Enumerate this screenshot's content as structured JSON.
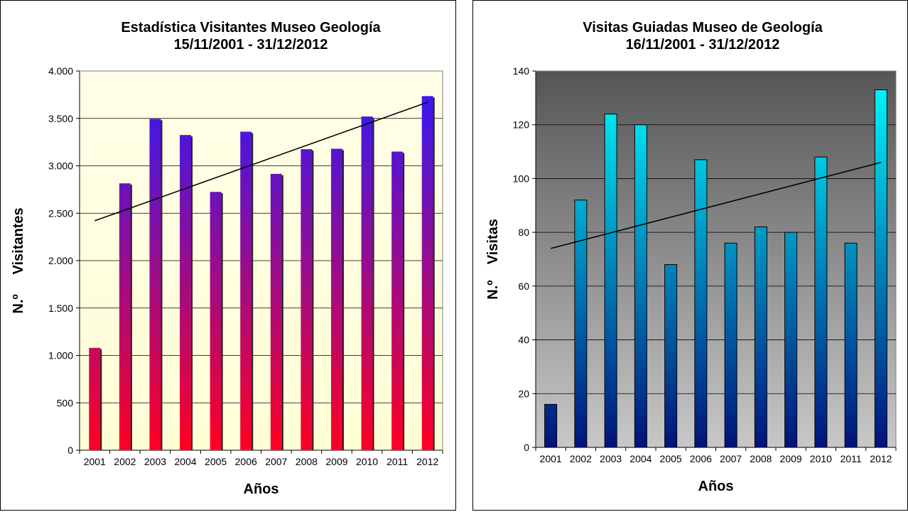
{
  "chart_data": [
    {
      "type": "bar",
      "title": "Estadística Visitantes Museo Geología",
      "subtitle": "15/11/2001  -  31/12/2012",
      "xlabel": "Años",
      "ylabel": "N.º     Visitantes",
      "categories": [
        "2001",
        "2002",
        "2003",
        "2004",
        "2005",
        "2006",
        "2007",
        "2008",
        "2009",
        "2010",
        "2011",
        "2012"
      ],
      "values": [
        1080,
        2815,
        3495,
        3325,
        2725,
        3360,
        2915,
        3175,
        3180,
        3520,
        3150,
        3735
      ],
      "ylim": [
        0,
        4000
      ],
      "yticks": [
        0,
        500,
        1000,
        1500,
        2000,
        2500,
        3000,
        3500,
        4000
      ],
      "ytick_labels": [
        "0",
        "500",
        "1.000",
        "1.500",
        "2.000",
        "2.500",
        "3.000",
        "3.500",
        "4.000"
      ],
      "trendline": {
        "start": 2420,
        "end": 3670
      },
      "grid": true,
      "legend": "none",
      "colors": {
        "bar_top": "#2a1aff",
        "bar_bottom": "#ff0022",
        "plot_top": "#fffde6",
        "plot_bottom": "#ffffd6"
      }
    },
    {
      "type": "bar",
      "title": "Visitas Guiadas Museo de Geología",
      "subtitle": "16/11/2001 - 31/12/2012",
      "xlabel": "Años",
      "ylabel": "N.º    Visitas",
      "categories": [
        "2001",
        "2002",
        "2003",
        "2004",
        "2005",
        "2006",
        "2007",
        "2008",
        "2009",
        "2010",
        "2011",
        "2012"
      ],
      "values": [
        16,
        92,
        124,
        120,
        68,
        107,
        76,
        82,
        80,
        108,
        76,
        133
      ],
      "ylim": [
        0,
        140
      ],
      "yticks": [
        0,
        20,
        40,
        60,
        80,
        100,
        120,
        140
      ],
      "ytick_labels": [
        "0",
        "20",
        "40",
        "60",
        "80",
        "100",
        "120",
        "140"
      ],
      "trendline": {
        "start": 74,
        "end": 106
      },
      "grid": true,
      "legend": "none",
      "colors": {
        "bar_top": "#00ffff",
        "bar_bottom": "#00137a",
        "plot_top": "#555555",
        "plot_bottom": "#c8c8c8"
      }
    }
  ]
}
